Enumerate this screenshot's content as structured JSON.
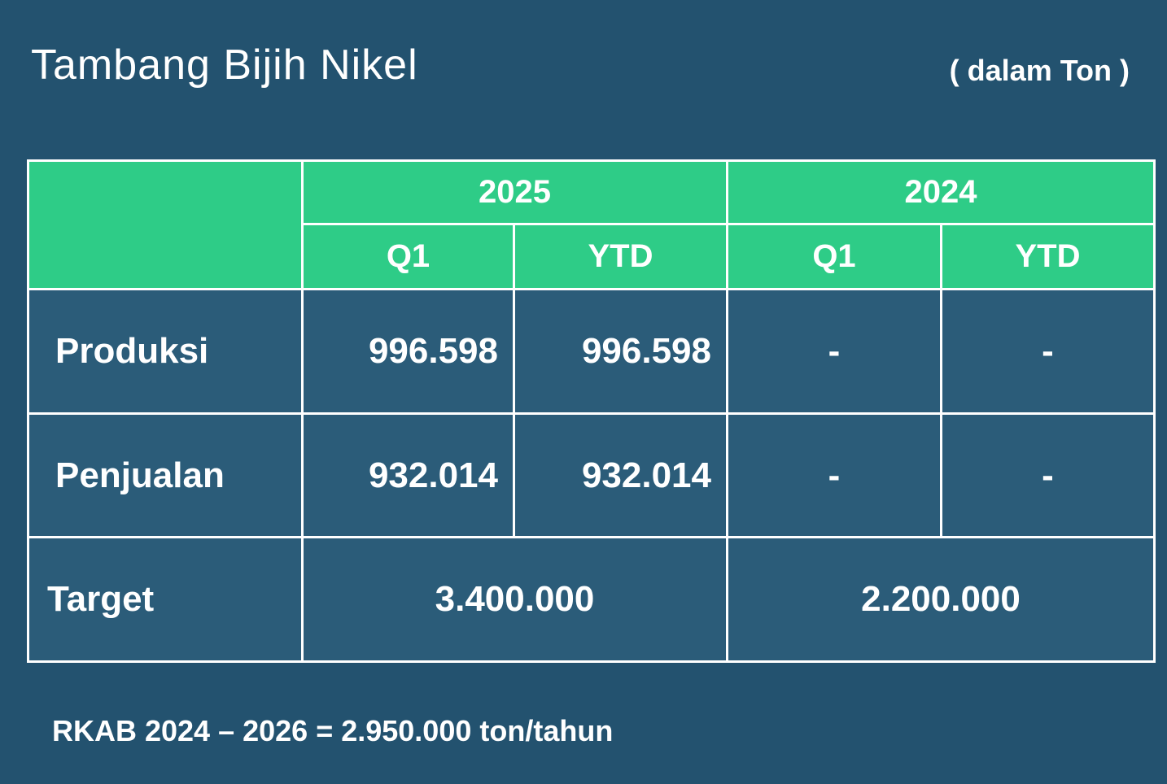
{
  "header": {
    "title": "Tambang Bijih Nikel",
    "unit": "( dalam Ton )"
  },
  "table": {
    "years": [
      "2025",
      "2024"
    ],
    "subheaders": [
      "Q1",
      "YTD",
      "Q1",
      "YTD"
    ],
    "rows": [
      {
        "label": "Produksi",
        "values": [
          "996.598",
          "996.598",
          "-",
          "-"
        ]
      },
      {
        "label": "Penjualan",
        "values": [
          "932.014",
          "932.014",
          "-",
          "-"
        ]
      }
    ],
    "target": {
      "label": "Target",
      "values": [
        "3.400.000",
        "2.200.000"
      ]
    }
  },
  "footnote": "RKAB 2024 – 2026 = 2.950.000 ton/tahun"
}
